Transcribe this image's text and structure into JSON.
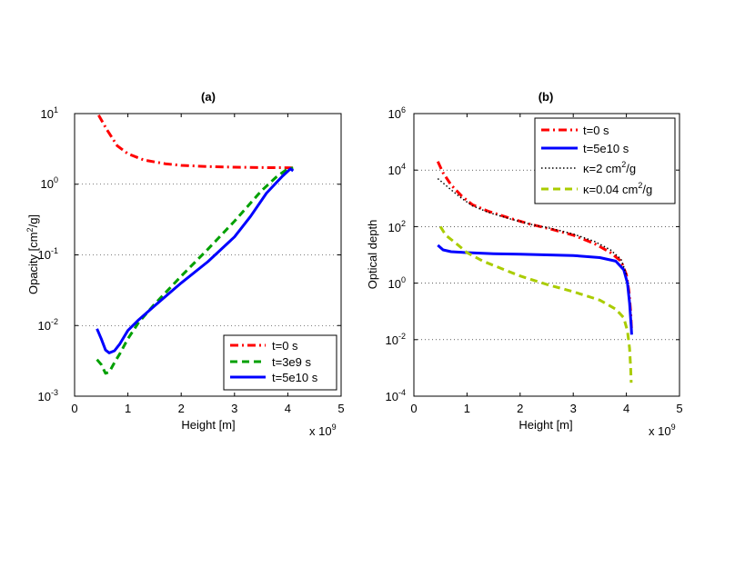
{
  "chart_data": [
    {
      "type": "line",
      "title": "(a)",
      "xlabel": "Height [m]",
      "ylabel": "Opacity [cm",
      "ylabel_sup": "2",
      "ylabel_tail": "/g]",
      "x_multiplier": "x 10",
      "x_multiplier_exp": "9",
      "xlim": [
        0,
        5
      ],
      "ylim_log10": [
        -3,
        1
      ],
      "yscale": "log",
      "grid_y_major": true,
      "x_ticks": [
        0,
        1,
        2,
        3,
        4,
        5
      ],
      "x_tick_labels": [
        "0",
        "1",
        "2",
        "3",
        "4",
        "5"
      ],
      "y_ticks_exp": [
        -3,
        -2,
        -1,
        0,
        1
      ],
      "y_tick_base": "10",
      "y_tick_exps": [
        "-3",
        "-2",
        "-1",
        "0",
        "1"
      ],
      "legend_position": "bottom-right",
      "series": [
        {
          "name": "t=0 s",
          "color": "#ff0000",
          "dash": "dashdot",
          "x": [
            0.45,
            0.6,
            0.8,
            1.0,
            1.3,
            1.7,
            2.0,
            2.5,
            3.0,
            3.5,
            4.0,
            4.1
          ],
          "y": [
            9.5,
            6.0,
            3.5,
            2.7,
            2.2,
            1.95,
            1.85,
            1.78,
            1.74,
            1.72,
            1.71,
            1.7
          ]
        },
        {
          "name": "t=3e9 s",
          "color": "#00a000",
          "dash": "dash",
          "x": [
            0.42,
            0.5,
            0.58,
            0.65,
            0.75,
            0.85,
            1.0,
            1.2,
            1.5,
            2.0,
            2.5,
            3.0,
            3.5,
            3.8,
            4.0,
            4.1
          ],
          "y": [
            0.0033,
            0.0028,
            0.0021,
            0.0022,
            0.003,
            0.004,
            0.0065,
            0.011,
            0.02,
            0.05,
            0.12,
            0.3,
            0.8,
            1.3,
            1.65,
            1.7
          ]
        },
        {
          "name": "t=5e10 s",
          "color": "#0000ff",
          "dash": "solid",
          "x": [
            0.42,
            0.5,
            0.58,
            0.65,
            0.75,
            0.85,
            1.0,
            1.2,
            1.5,
            2.0,
            2.5,
            3.0,
            3.3,
            3.6,
            3.9,
            4.05,
            4.1
          ],
          "y": [
            0.009,
            0.0065,
            0.0045,
            0.0041,
            0.0044,
            0.0055,
            0.0085,
            0.012,
            0.019,
            0.04,
            0.08,
            0.18,
            0.35,
            0.75,
            1.3,
            1.65,
            1.55
          ]
        }
      ]
    },
    {
      "type": "line",
      "title": "(b)",
      "xlabel": "Height [m]",
      "ylabel": "Optical depth",
      "x_multiplier": "x 10",
      "x_multiplier_exp": "9",
      "xlim": [
        0,
        5
      ],
      "ylim_log10": [
        -4,
        6
      ],
      "yscale": "log",
      "grid_y_major": true,
      "x_ticks": [
        0,
        1,
        2,
        3,
        4,
        5
      ],
      "x_tick_labels": [
        "0",
        "1",
        "2",
        "3",
        "4",
        "5"
      ],
      "y_ticks_exp": [
        -4,
        -2,
        0,
        2,
        4,
        6
      ],
      "y_tick_base": "10",
      "y_tick_exps": [
        "-4",
        "-2",
        "0",
        "2",
        "4",
        "6"
      ],
      "legend_position": "top-right",
      "series": [
        {
          "name": "t=0 s",
          "color": "#ff0000",
          "dash": "dashdot",
          "x": [
            0.45,
            0.55,
            0.7,
            0.9,
            1.1,
            1.4,
            1.8,
            2.2,
            2.6,
            3.0,
            3.4,
            3.7,
            3.9,
            4.0,
            4.05,
            4.08,
            4.1
          ],
          "y": [
            20000,
            8000,
            3000,
            1200,
            600,
            350,
            200,
            120,
            80,
            50,
            25,
            12,
            6,
            2,
            0.5,
            0.1,
            0.02
          ]
        },
        {
          "name": "t=5e10 s",
          "color": "#0000ff",
          "dash": "solid",
          "x": [
            0.45,
            0.55,
            0.7,
            1.0,
            1.5,
            2.0,
            2.5,
            3.0,
            3.5,
            3.8,
            3.95,
            4.02,
            4.06,
            4.09,
            4.1
          ],
          "y": [
            22,
            15,
            13,
            12,
            11,
            10.5,
            10,
            9.5,
            8,
            6,
            3,
            1,
            0.2,
            0.03,
            0.015
          ]
        },
        {
          "name": "κ=2 cm²/g",
          "name_main": "κ=2 cm",
          "name_sup": "2",
          "name_tail": "/g",
          "color": "#000000",
          "dash": "dot",
          "x": [
            0.45,
            0.55,
            0.7,
            0.9,
            1.1,
            1.4,
            1.8,
            2.2,
            2.6,
            3.0,
            3.4,
            3.7,
            3.9,
            4.0
          ],
          "y": [
            5000,
            3500,
            2000,
            1000,
            550,
            320,
            190,
            120,
            85,
            55,
            30,
            15,
            7,
            2
          ]
        },
        {
          "name": "κ=0.04 cm²/g",
          "name_main": "κ=0.04 cm",
          "name_sup": "2",
          "name_tail": "/g",
          "color": "#aacc00",
          "dash": "dash",
          "x": [
            0.5,
            0.6,
            0.8,
            1.0,
            1.3,
            1.7,
            2.0,
            2.5,
            3.0,
            3.5,
            3.8,
            3.95,
            4.02,
            4.06,
            4.08,
            4.09
          ],
          "y": [
            100,
            50,
            25,
            12,
            6,
            3,
            1.8,
            0.9,
            0.5,
            0.25,
            0.12,
            0.06,
            0.02,
            0.005,
            0.001,
            0.0003
          ]
        }
      ]
    }
  ]
}
